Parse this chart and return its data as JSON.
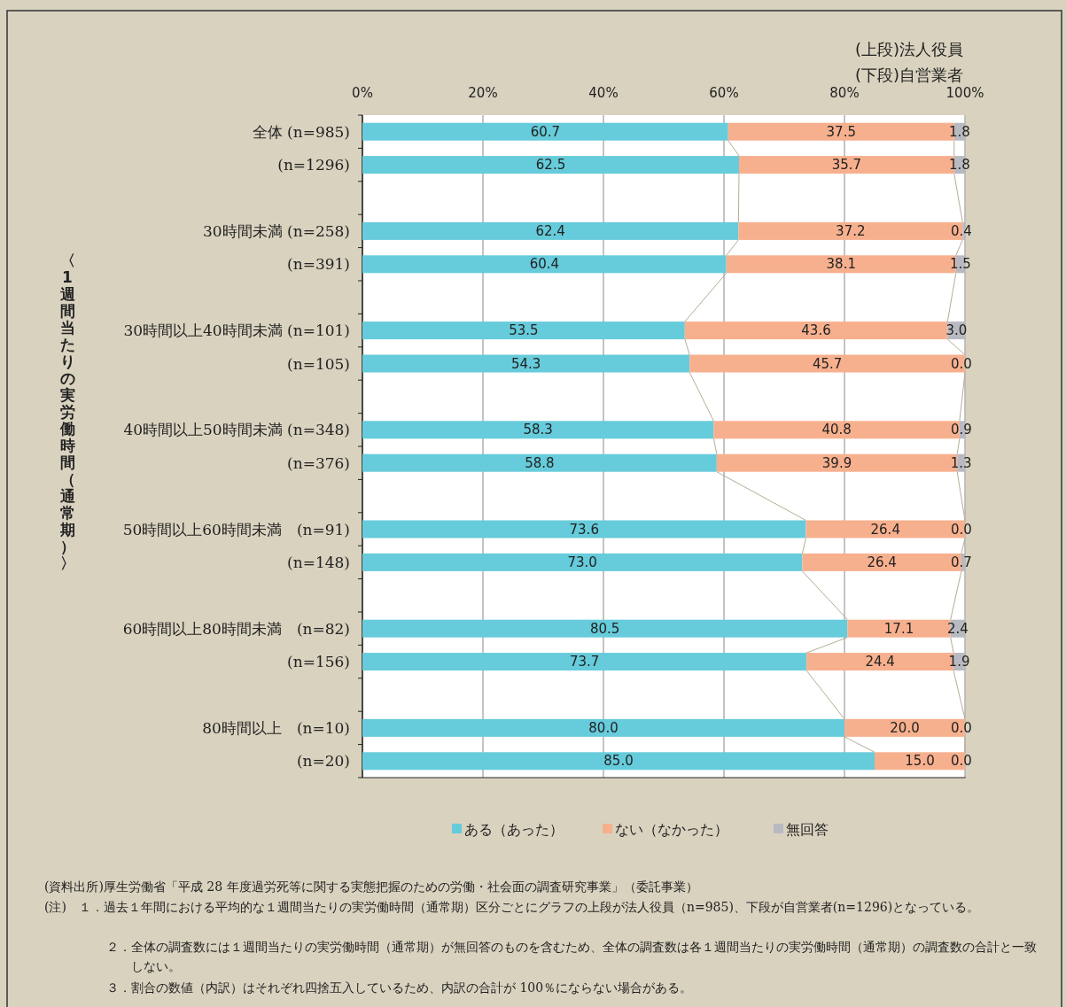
{
  "chart_data": {
    "type": "bar",
    "orientation": "horizontal",
    "stacked": true,
    "ylabel": "〈1週間当たりの実労働時間（通常期）〉",
    "categories": [
      "全体 (n=985)",
      "(n=1296)",
      null,
      "30時間未満 (n=258)",
      "(n=391)",
      null,
      "30時間以上40時間未満 (n=101)",
      "(n=105)",
      null,
      "40時間以上50時間未満 (n=348)",
      "(n=376)",
      null,
      "50時間以上60時間未満　(n=91)",
      "(n=148)",
      null,
      "60時間以上80時間未満　(n=82)",
      "(n=156)",
      null,
      "80時間以上　(n=10)",
      "(n=20)"
    ],
    "series": [
      {
        "name": "ある（あった）",
        "color": "#66cbdb",
        "values": [
          60.7,
          62.5,
          null,
          62.4,
          60.4,
          null,
          53.5,
          54.3,
          null,
          58.3,
          58.8,
          null,
          73.6,
          73.0,
          null,
          80.5,
          73.7,
          null,
          80.0,
          85.0
        ],
        "value_labels": [
          "60.7",
          "62.5",
          null,
          "62.4",
          "60.4",
          null,
          "53.5",
          "54.3",
          null,
          "58.3",
          "58.8",
          null,
          "73.6",
          "73.0",
          null,
          "80.5",
          "73.7",
          null,
          "80.0",
          "85.0"
        ]
      },
      {
        "name": "ない（なかった）",
        "color": "#f7b08e",
        "values": [
          37.5,
          35.7,
          null,
          37.2,
          38.1,
          null,
          43.6,
          45.7,
          null,
          40.8,
          39.9,
          null,
          26.4,
          26.4,
          null,
          17.1,
          24.4,
          null,
          20.0,
          15.0
        ],
        "value_labels": [
          "37.5",
          "35.7",
          null,
          "37.2",
          "38.1",
          null,
          "43.6",
          "45.7",
          null,
          "40.8",
          "39.9",
          null,
          "26.4",
          "26.4",
          null,
          "17.1",
          "24.4",
          null,
          "20.0",
          "15.0"
        ]
      },
      {
        "name": "無回答",
        "color": "#b9b9c1",
        "values": [
          1.8,
          1.8,
          null,
          0.4,
          1.5,
          null,
          3.0,
          0.0,
          null,
          0.9,
          1.3,
          null,
          0.0,
          0.7,
          null,
          2.4,
          1.9,
          null,
          0.0,
          0.0
        ],
        "value_labels": [
          "1.8",
          "1.8",
          null,
          "0.4",
          "1.5",
          null,
          "3.0",
          "0.0",
          null,
          "0.9",
          "1.3",
          null,
          "0.0",
          "0.7",
          null,
          "2.4",
          "1.9",
          null,
          "0.0",
          "0.0"
        ]
      }
    ],
    "xlim": [
      0,
      100.1
    ],
    "xticks": [
      {
        "value": 0,
        "label": "0%"
      },
      {
        "value": 20,
        "label": "20%"
      },
      {
        "value": 40,
        "label": "40%"
      },
      {
        "value": 60,
        "label": "60%"
      },
      {
        "value": 80,
        "label": "80%"
      },
      {
        "value": 100,
        "label": "100%"
      }
    ],
    "grid": "x",
    "legend": "bottom",
    "annotations": [
      "(上段)法人役員",
      "(下段)自営業者",
      "(資料出所)厚生労働省「平成 28 年度過労死等に関する実態把握のための労働・社会面の調査研究事業」（委託事業）",
      "(注)　１．過去１年間における平均的な１週間当たりの実労働時間（通常期）区分ごとにグラフの上段が法人役員（n=985)、下段が自営業者(n=1296)となっている。",
      "２．全体の調査数には１週間当たりの実労働時間（通常期）が無回答のものを含むため、全体の調査数は各１週間当たりの実労働時間（通常期）の調査数の合計と一致しない。",
      "３．割合の数値（内訳）はそれぞれ四捨五入しているため、内訳の合計が 100％にならない場合がある。"
    ]
  }
}
